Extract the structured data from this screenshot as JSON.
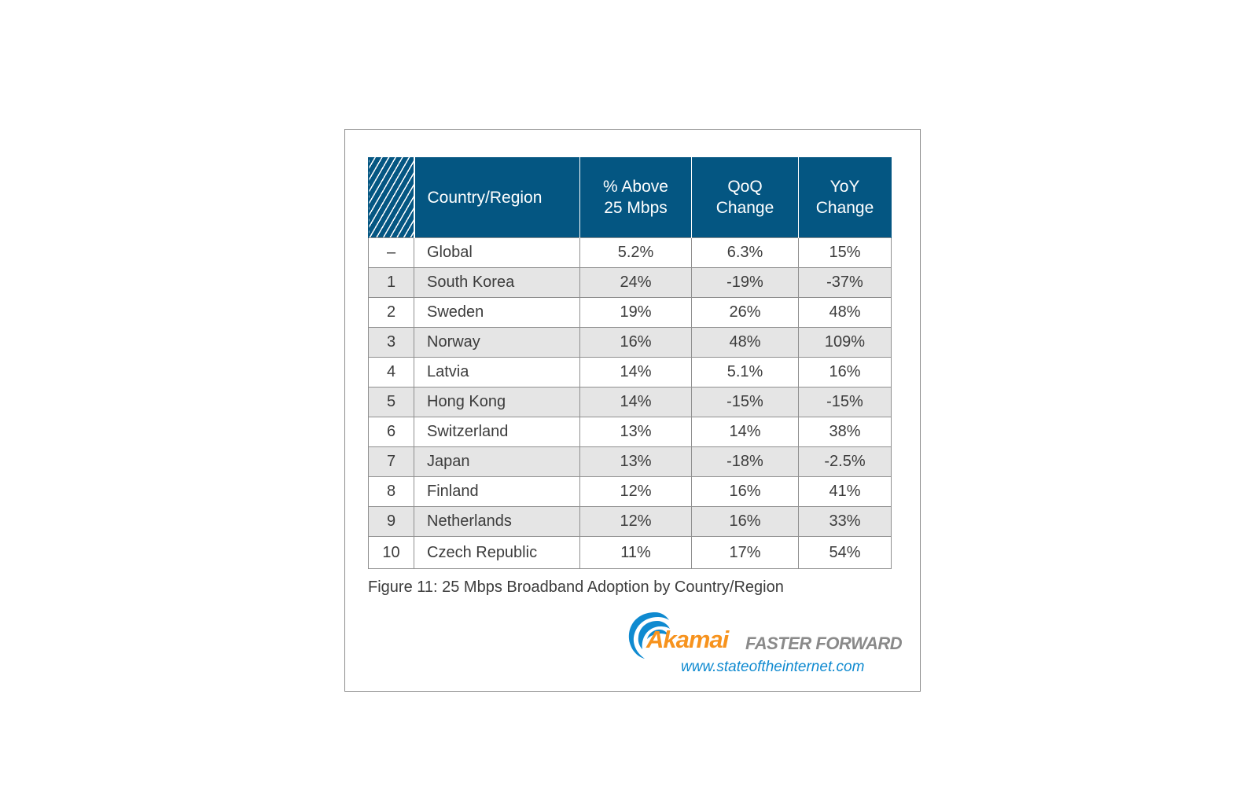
{
  "chart_data": {
    "type": "table",
    "title": "Figure 11: 25 Mbps Broadband Adoption by Country/Region",
    "columns": [
      {
        "key": "rank",
        "label_lines": []
      },
      {
        "key": "country",
        "label_lines": [
          "Country/Region"
        ]
      },
      {
        "key": "above",
        "label_lines": [
          "% Above",
          "25 Mbps"
        ]
      },
      {
        "key": "qoq",
        "label_lines": [
          "QoQ",
          "Change"
        ]
      },
      {
        "key": "yoy",
        "label_lines": [
          "YoY",
          "Change"
        ]
      }
    ],
    "rows": [
      {
        "rank": "–",
        "country": "Global",
        "above": "5.2%",
        "qoq": "6.3%",
        "yoy": "15%"
      },
      {
        "rank": "1",
        "country": "South Korea",
        "above": "24%",
        "qoq": "-19%",
        "yoy": "-37%"
      },
      {
        "rank": "2",
        "country": "Sweden",
        "above": "19%",
        "qoq": "26%",
        "yoy": "48%"
      },
      {
        "rank": "3",
        "country": "Norway",
        "above": "16%",
        "qoq": "48%",
        "yoy": "109%"
      },
      {
        "rank": "4",
        "country": "Latvia",
        "above": "14%",
        "qoq": "5.1%",
        "yoy": "16%"
      },
      {
        "rank": "5",
        "country": "Hong Kong",
        "above": "14%",
        "qoq": "-15%",
        "yoy": "-15%"
      },
      {
        "rank": "6",
        "country": "Switzerland",
        "above": "13%",
        "qoq": "14%",
        "yoy": "38%"
      },
      {
        "rank": "7",
        "country": "Japan",
        "above": "13%",
        "qoq": "-18%",
        "yoy": "-2.5%"
      },
      {
        "rank": "8",
        "country": "Finland",
        "above": "12%",
        "qoq": "16%",
        "yoy": "41%"
      },
      {
        "rank": "9",
        "country": "Netherlands",
        "above": "12%",
        "qoq": "16%",
        "yoy": "33%"
      },
      {
        "rank": "10",
        "country": "Czech Republic",
        "above": "11%",
        "qoq": "17%",
        "yoy": "54%"
      }
    ]
  },
  "branding": {
    "wordmark": "Akamai",
    "tagline": "FASTER FORWARD",
    "url": "www.stateoftheinternet.com",
    "colors": {
      "header_bg": "#045682",
      "wordmark": "#f7931e",
      "url": "#0f8ad0",
      "tagline": "#8a8a8a",
      "row_shade": "#e5e5e5"
    }
  }
}
